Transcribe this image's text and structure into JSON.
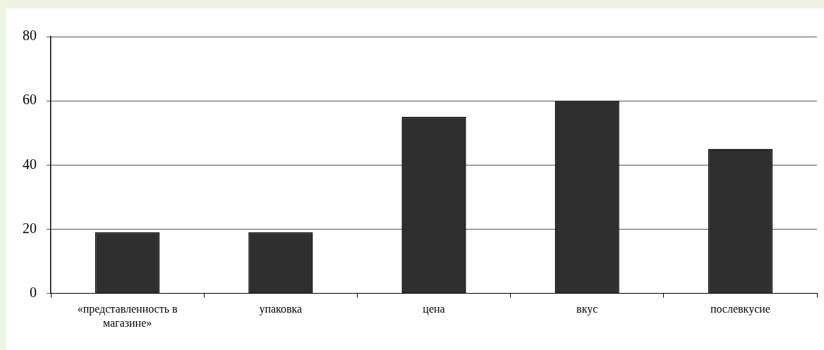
{
  "chart_data": {
    "type": "bar",
    "categories": [
      "«представленность в магазине»",
      "упаковка",
      "цена",
      "вкус",
      "послевкусие"
    ],
    "values": [
      19,
      19,
      55,
      60,
      45
    ],
    "color": "#2f2f2f",
    "ylim": [
      0,
      80
    ],
    "yticks": [
      0,
      20,
      40,
      60,
      80
    ],
    "grid": "y",
    "legend": false
  }
}
